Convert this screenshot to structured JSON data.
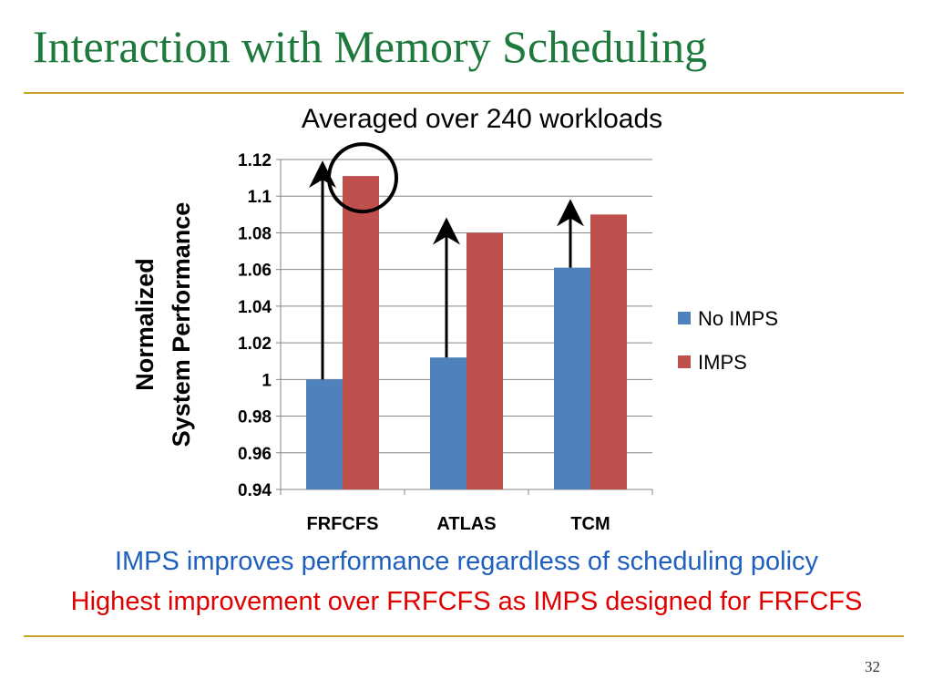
{
  "slide": {
    "title": "Interaction with Memory Scheduling",
    "page_number": "32",
    "caption_blue": "IMPS improves performance regardless of scheduling policy",
    "caption_red": "Highest improvement over FRFCFS as IMPS designed for FRFCFS",
    "accent_color": "#c9a227",
    "title_color": "#1e7a3c"
  },
  "chart_data": {
    "type": "bar",
    "title": "Averaged over 240 workloads",
    "ylabel_lines": [
      "Normalized",
      "System Performance"
    ],
    "xlabel": "",
    "categories": [
      "FRFCFS",
      "ATLAS",
      "TCM"
    ],
    "series": [
      {
        "name": "No IMPS",
        "values": [
          1.0,
          1.012,
          1.061
        ],
        "color": "#4f81bd"
      },
      {
        "name": "IMPS",
        "values": [
          1.111,
          1.08,
          1.09
        ],
        "color": "#c0504d"
      }
    ],
    "ylim": [
      0.94,
      1.12
    ],
    "yticks": [
      "0.94",
      "0.96",
      "0.98",
      "1",
      "1.02",
      "1.04",
      "1.06",
      "1.08",
      "1.1",
      "1.12"
    ],
    "grid": true,
    "legend_position": "right",
    "annotations": [
      "arrows from No IMPS to IMPS bar heights",
      "circle around FRFCFS IMPS bar"
    ]
  }
}
